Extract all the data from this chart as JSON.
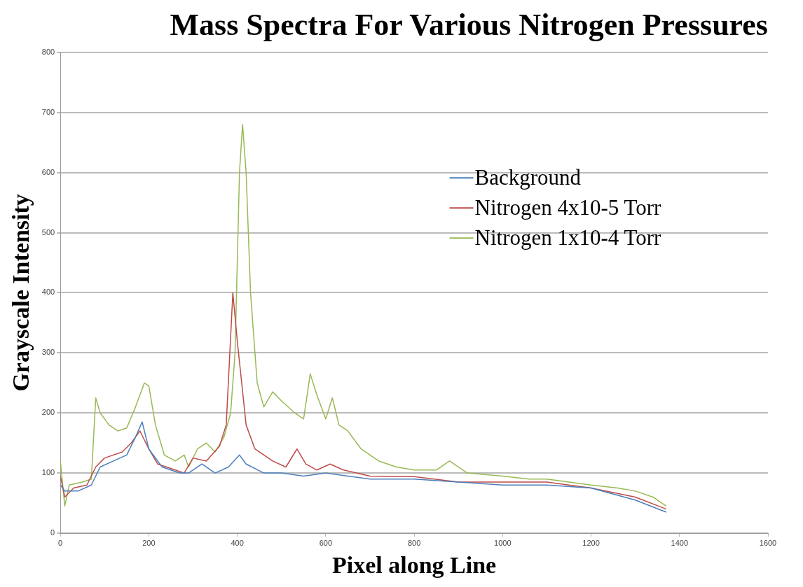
{
  "chart_data": {
    "type": "line",
    "title": "Mass Spectra For Various Nitrogen Pressures",
    "xlabel": "Pixel along Line",
    "ylabel": "Grayscale Intensity",
    "xlim": [
      0,
      1600
    ],
    "xticks": [
      0,
      200,
      400,
      600,
      800,
      1000,
      1200,
      1400,
      1600
    ],
    "ylim": [
      0,
      800
    ],
    "yticks": [
      0,
      100,
      200,
      300,
      400,
      500,
      600,
      700,
      800
    ],
    "grid": "y",
    "legend": "top right",
    "marker": "none",
    "line_style": "solid",
    "series": [
      {
        "name": "Background",
        "color": "#4a7ebb",
        "x": [
          0,
          10,
          40,
          70,
          90,
          120,
          150,
          170,
          185,
          200,
          230,
          270,
          290,
          320,
          350,
          380,
          405,
          420,
          460,
          500,
          550,
          600,
          650,
          700,
          800,
          900,
          1000,
          1100,
          1200,
          1300,
          1370
        ],
        "values": [
          80,
          70,
          70,
          80,
          110,
          120,
          130,
          160,
          185,
          140,
          110,
          100,
          100,
          115,
          100,
          110,
          130,
          115,
          100,
          100,
          95,
          100,
          95,
          90,
          90,
          85,
          80,
          80,
          75,
          55,
          35
        ]
      },
      {
        "name": "Nitrogen 4x10-5 Torr",
        "color": "#be4b48",
        "x": [
          0,
          10,
          30,
          60,
          80,
          100,
          140,
          160,
          180,
          200,
          220,
          260,
          280,
          300,
          330,
          360,
          375,
          390,
          400,
          410,
          420,
          440,
          480,
          510,
          535,
          555,
          580,
          610,
          640,
          700,
          800,
          900,
          1000,
          1100,
          1200,
          1300,
          1370
        ],
        "values": [
          95,
          60,
          75,
          80,
          110,
          125,
          135,
          150,
          170,
          140,
          115,
          105,
          100,
          125,
          120,
          145,
          180,
          400,
          320,
          250,
          180,
          140,
          120,
          110,
          140,
          115,
          105,
          115,
          105,
          95,
          94,
          85,
          85,
          85,
          75,
          60,
          40
        ]
      },
      {
        "name": "Nitrogen 1x10-4 Torr",
        "color": "#98b954",
        "x": [
          0,
          10,
          20,
          50,
          70,
          80,
          90,
          110,
          130,
          150,
          170,
          190,
          200,
          215,
          235,
          260,
          280,
          290,
          310,
          330,
          350,
          370,
          385,
          395,
          405,
          412,
          420,
          430,
          445,
          460,
          480,
          500,
          530,
          550,
          565,
          580,
          600,
          615,
          630,
          650,
          680,
          720,
          760,
          800,
          850,
          880,
          920,
          1000,
          1060,
          1100,
          1150,
          1200,
          1260,
          1300,
          1340,
          1370
        ],
        "values": [
          120,
          45,
          80,
          85,
          90,
          225,
          200,
          180,
          170,
          175,
          210,
          250,
          245,
          180,
          130,
          120,
          130,
          110,
          140,
          150,
          135,
          160,
          200,
          300,
          600,
          680,
          600,
          400,
          250,
          210,
          235,
          220,
          200,
          190,
          265,
          230,
          190,
          225,
          180,
          170,
          140,
          120,
          110,
          105,
          105,
          120,
          100,
          95,
          90,
          90,
          85,
          80,
          75,
          70,
          60,
          45
        ]
      }
    ]
  }
}
